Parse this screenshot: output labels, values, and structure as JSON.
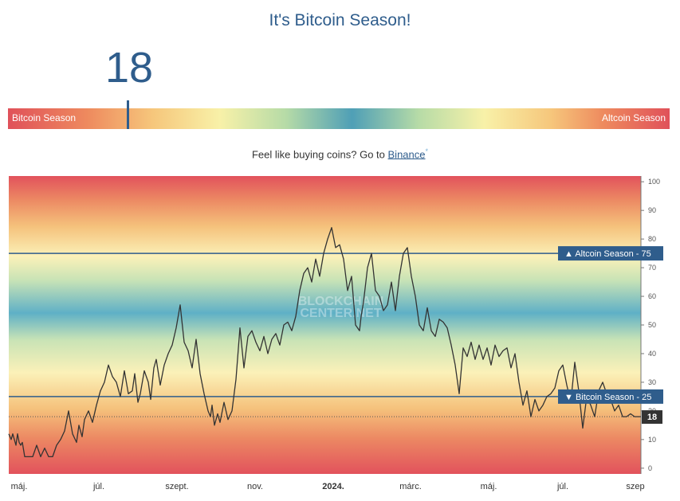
{
  "title": "It's Bitcoin Season!",
  "gauge": {
    "value": "18",
    "left_label": "Bitcoin Season",
    "right_label": "Altcoin Season"
  },
  "promo": {
    "text": "Feel like buying coins? Go to ",
    "link": "Binance",
    "sup": "*"
  },
  "chart_data": {
    "type": "line",
    "watermark": [
      "BLOCKCHAIN",
      "CENTER.NET"
    ],
    "ylim": [
      -2,
      102
    ],
    "yticks": [
      "0",
      "10",
      "20",
      "30",
      "40",
      "50",
      "60",
      "70",
      "80",
      "90",
      "100"
    ],
    "xticks": [
      "máj.",
      "júl.",
      "szept.",
      "nov.",
      "2024.",
      "márc.",
      "máj.",
      "júl.",
      "szep"
    ],
    "xticks_bold": "2024.",
    "thresholds": [
      {
        "value": 75,
        "label": "▲ Altcoin Season - 75"
      },
      {
        "value": 25,
        "label": "▼ Bitcoin Season - 25"
      }
    ],
    "current": {
      "value": 18,
      "label": "18"
    },
    "colors": {
      "line": "#333333",
      "threshold": "#2f5d8c",
      "flag": "#2f5d8c",
      "current_box": "#333333"
    },
    "x": [
      0,
      3,
      5,
      7,
      9,
      11,
      13,
      15,
      17,
      20,
      25,
      30,
      35,
      40,
      45,
      50,
      55,
      60,
      65,
      70,
      75,
      80,
      85,
      88,
      92,
      95,
      100,
      105,
      110,
      115,
      120,
      125,
      130,
      135,
      140,
      145,
      150,
      155,
      158,
      162,
      165,
      170,
      175,
      178,
      182,
      185,
      190,
      195,
      200,
      205,
      210,
      215,
      220,
      225,
      230,
      235,
      240,
      245,
      250,
      253,
      255,
      258,
      262,
      265,
      270,
      275,
      280,
      285,
      290,
      295,
      300,
      305,
      310,
      315,
      320,
      325,
      330,
      335,
      340,
      345,
      350,
      355,
      360,
      365,
      370,
      375,
      380,
      385,
      390,
      395,
      400,
      405,
      410,
      415,
      420,
      425,
      430,
      435,
      440,
      442,
      445,
      450,
      455,
      460,
      465,
      470,
      475,
      480,
      485,
      490,
      495,
      500,
      505,
      510,
      515,
      520,
      525,
      530,
      535,
      540,
      545,
      550,
      555,
      560,
      565,
      570,
      575,
      580,
      585,
      590,
      595,
      600,
      605,
      610,
      615,
      620,
      625,
      630,
      635,
      640,
      645,
      650,
      655,
      660,
      665,
      670,
      675,
      680,
      685,
      690,
      695,
      700,
      705,
      710,
      715,
      720,
      725,
      730,
      735,
      740,
      745,
      750,
      755,
      760,
      765,
      770,
      775,
      780,
      785,
      790,
      793
    ],
    "y": [
      12,
      10,
      12,
      10,
      8,
      12,
      9,
      8,
      9,
      4,
      4,
      4,
      8,
      4,
      7,
      4,
      4,
      8,
      10,
      13,
      20,
      12,
      9,
      15,
      11,
      17,
      20,
      16,
      22,
      27,
      30,
      36,
      32,
      30,
      25,
      34,
      26,
      27,
      33,
      23,
      26,
      34,
      30,
      24,
      35,
      38,
      29,
      36,
      40,
      43,
      49,
      57,
      44,
      41,
      35,
      45,
      33,
      26,
      20,
      18,
      22,
      15,
      19,
      16,
      23,
      17,
      20,
      31,
      49,
      35,
      46,
      48,
      44,
      41,
      46,
      40,
      45,
      47,
      43,
      50,
      51,
      48,
      53,
      62,
      68,
      70,
      65,
      73,
      67,
      75,
      80,
      84,
      77,
      78,
      73,
      62,
      67,
      50,
      48,
      53,
      58,
      70,
      75,
      62,
      60,
      55,
      57,
      65,
      55,
      67,
      75,
      77,
      67,
      60,
      50,
      48,
      56,
      48,
      46,
      52,
      51,
      49,
      43,
      36,
      26,
      42,
      39,
      44,
      38,
      43,
      38,
      42,
      36,
      43,
      39,
      41,
      42,
      35,
      40,
      30,
      22,
      27,
      18,
      24,
      20,
      22,
      25,
      26,
      28,
      34,
      36,
      29,
      23,
      37,
      27,
      14,
      25,
      22,
      18,
      27,
      30,
      26,
      24,
      20,
      22,
      18,
      18,
      19,
      18,
      18,
      18
    ]
  }
}
